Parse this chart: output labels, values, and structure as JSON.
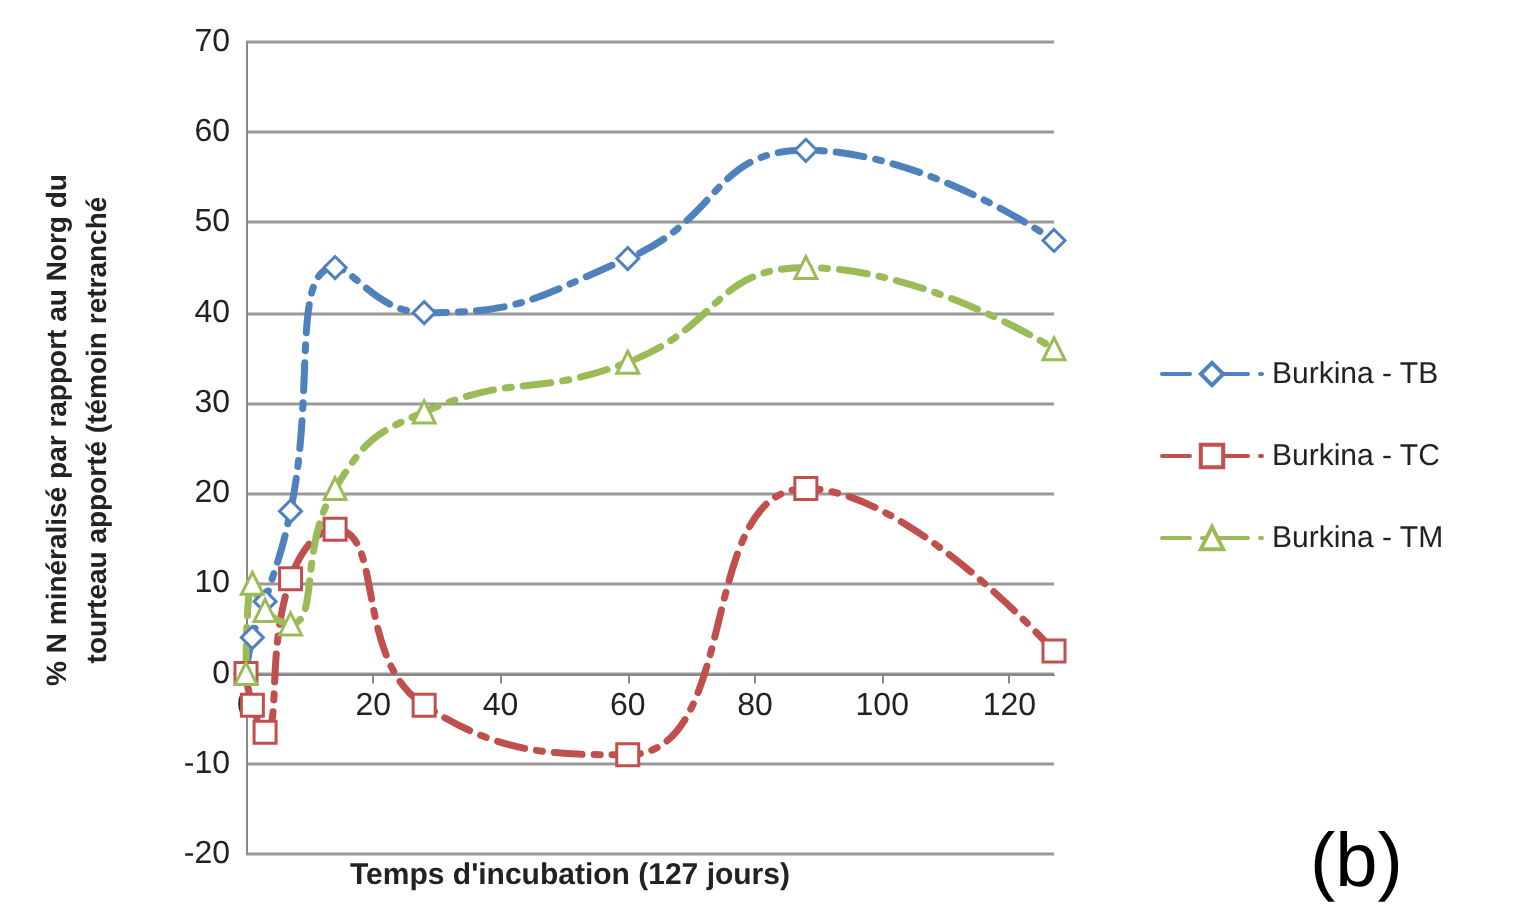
{
  "chart_data": {
    "type": "line",
    "xlabel": "Temps d'incubation (127 jours)",
    "ylabel": "% N minéralisé par rapport au Norg du\ntourteau apporté (témoin retranché",
    "x": [
      0,
      1,
      3,
      7,
      14,
      28,
      60,
      88,
      127
    ],
    "series": [
      {
        "name": "Burkina - TB",
        "color": "#4f81bd",
        "marker": "diamond",
        "values": [
          0,
          4,
          8,
          18,
          45,
          40,
          46,
          58,
          48
        ]
      },
      {
        "name": "Burkina - TC",
        "color": "#c0504d",
        "marker": "square",
        "values": [
          0,
          -3.5,
          -6.5,
          10.5,
          16,
          -3.5,
          -9,
          20.5,
          2.5
        ]
      },
      {
        "name": "Burkina - TM",
        "color": "#9bbb59",
        "marker": "triangle",
        "values": [
          0,
          10,
          7,
          5.5,
          20.5,
          29,
          34.5,
          45,
          36
        ]
      }
    ],
    "xlim": [
      0,
      127
    ],
    "xticks": [
      0,
      20,
      40,
      60,
      80,
      100,
      120
    ],
    "ylim": [
      -20,
      70
    ],
    "yticks": [
      -20,
      -10,
      0,
      10,
      20,
      30,
      40,
      50,
      60,
      70
    ],
    "grid": "y",
    "legend": "right",
    "line_style": "dashed",
    "annotations": [
      "(b)"
    ]
  }
}
